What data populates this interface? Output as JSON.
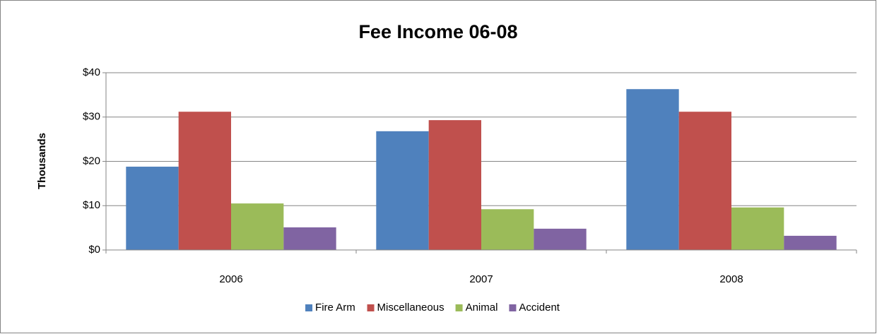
{
  "chart_data": {
    "type": "bar",
    "title": "Fee Income 06-08",
    "ylabel": "Thousands",
    "categories": [
      "2006",
      "2007",
      "2008"
    ],
    "series": [
      {
        "name": "Fire Arm",
        "color": "#4f81bd",
        "values": [
          18.8,
          26.8,
          36.3
        ]
      },
      {
        "name": "Miscellaneous",
        "color": "#c0504d",
        "values": [
          31.2,
          29.3,
          31.2
        ]
      },
      {
        "name": "Animal",
        "color": "#9bbb59",
        "values": [
          10.5,
          9.2,
          9.6
        ]
      },
      {
        "name": "Accident",
        "color": "#8064a2",
        "values": [
          5.1,
          4.8,
          3.2
        ]
      }
    ],
    "ylim": [
      0,
      40
    ],
    "yticks": [
      {
        "value": 0,
        "label": "$0"
      },
      {
        "value": 10,
        "label": "$10"
      },
      {
        "value": 20,
        "label": "$20"
      },
      {
        "value": 30,
        "label": "$30"
      },
      {
        "value": 40,
        "label": "$40"
      }
    ],
    "grid": true,
    "legend": "bottom"
  }
}
